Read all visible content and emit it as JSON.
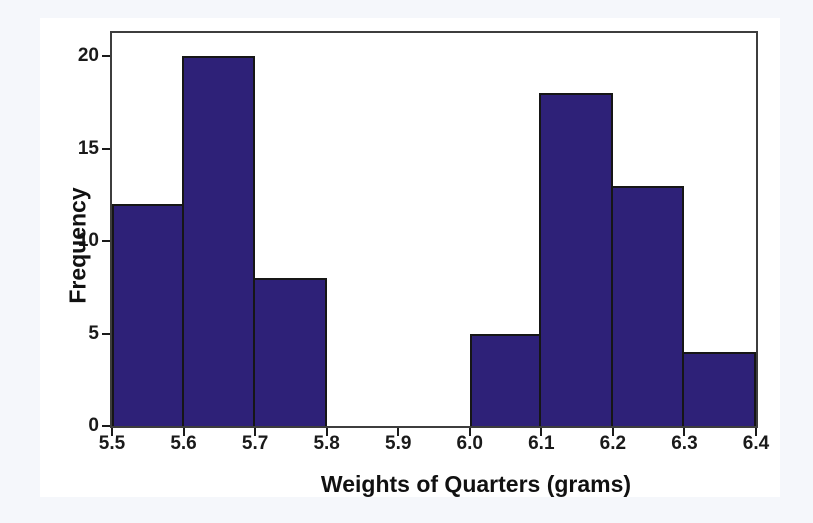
{
  "page": {
    "background": "#f5f7fb",
    "panel_background": "#ffffff"
  },
  "chart_data": {
    "type": "bar",
    "subtype": "histogram",
    "title": "",
    "xlabel": "Weights of Quarters (grams)",
    "ylabel": "Frequency",
    "bin_edges": [
      5.5,
      5.6,
      5.7,
      5.8,
      5.9,
      6.0,
      6.1,
      6.2,
      6.3,
      6.4
    ],
    "values": [
      12,
      20,
      8,
      0,
      0,
      5,
      18,
      13,
      4
    ],
    "xtick_labels": [
      "5.5",
      "5.6",
      "5.7",
      "5.8",
      "5.9",
      "6.0",
      "6.1",
      "6.2",
      "6.3",
      "6.4"
    ],
    "yticks": [
      0,
      5,
      10,
      15,
      20
    ],
    "xlim": [
      5.5,
      6.4
    ],
    "ylim": [
      0,
      21.25
    ],
    "grid": false,
    "legend": null,
    "bar_fill": "#2e2178",
    "bar_border": "#161616",
    "frame_color": "#3d3d3d",
    "text_color": "#111111"
  }
}
